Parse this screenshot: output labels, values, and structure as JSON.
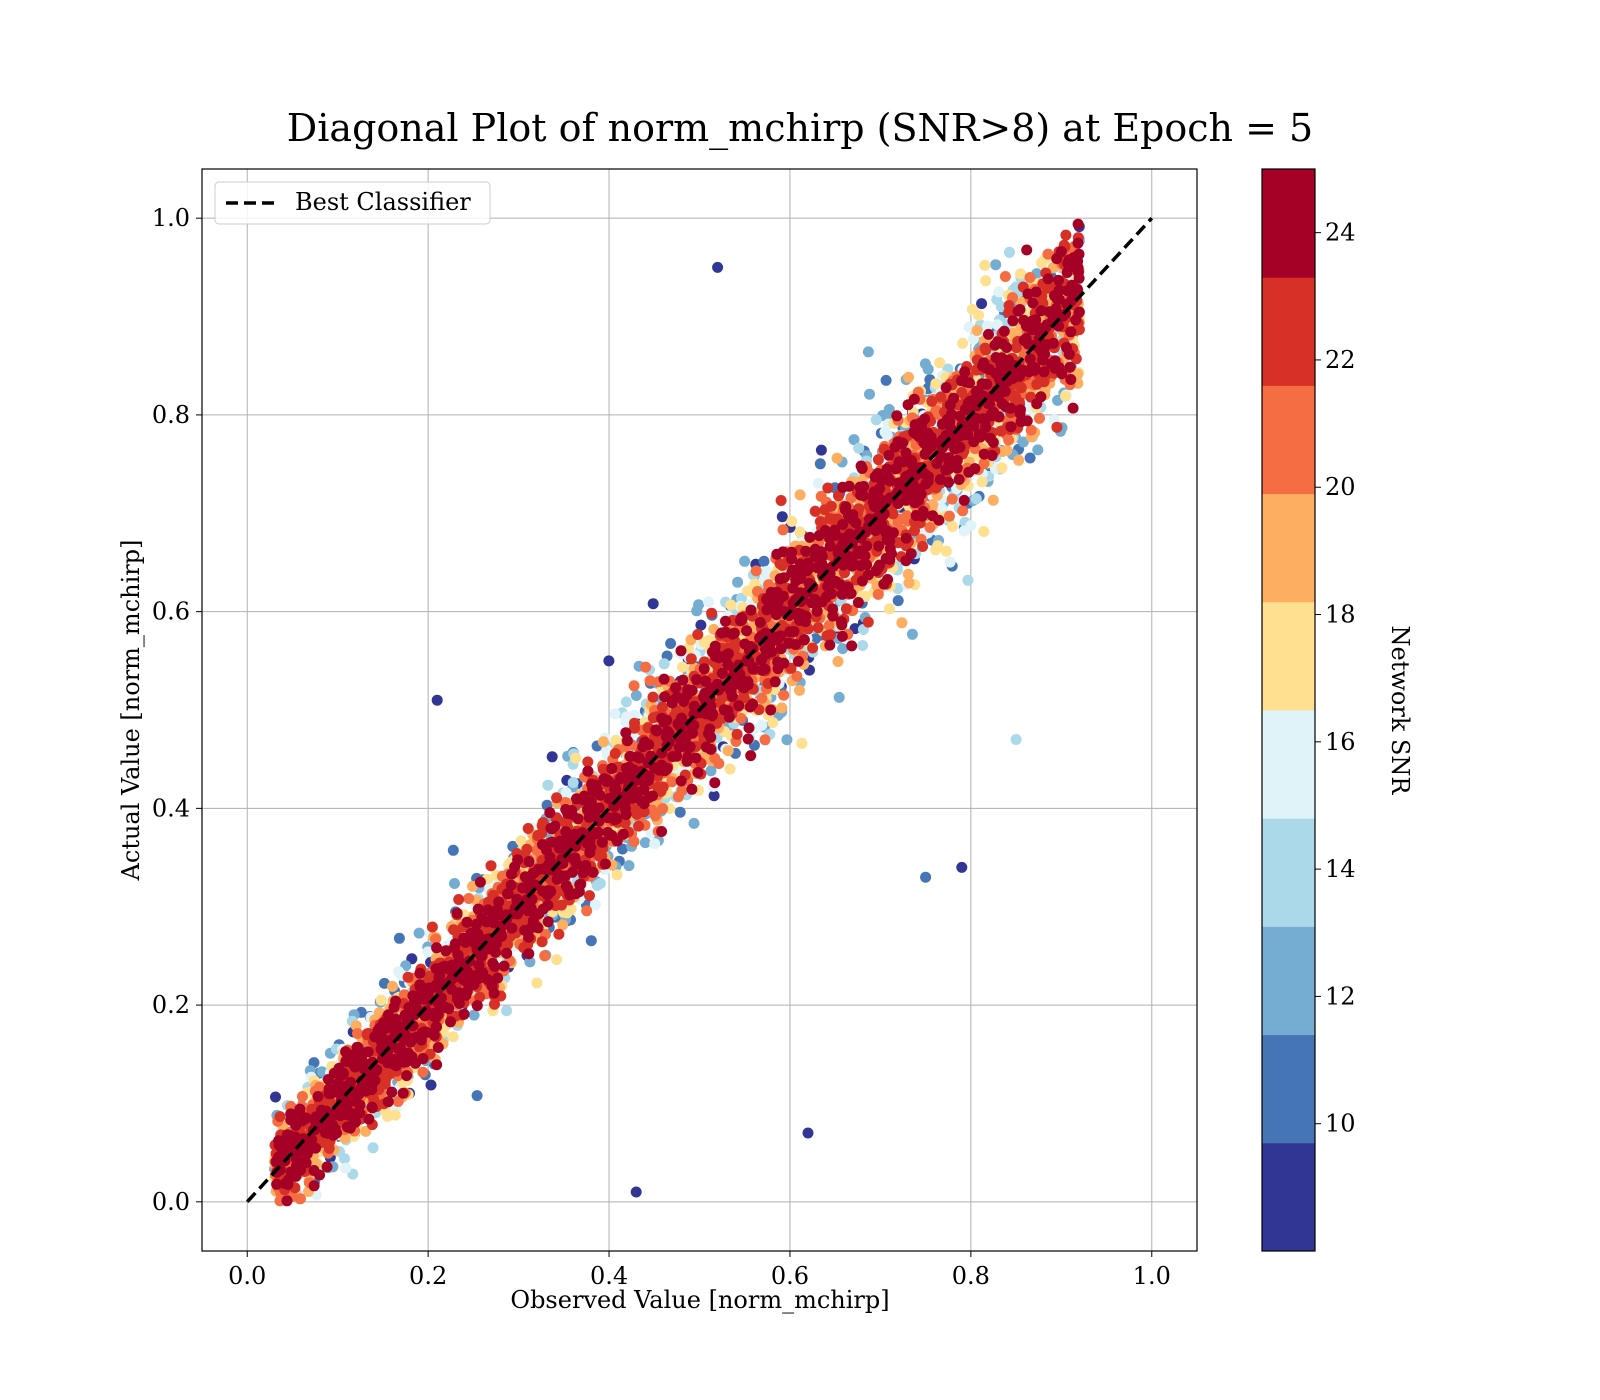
{
  "chart_data": {
    "type": "scatter",
    "title": "Diagonal Plot of norm_mchirp (SNR>8) at Epoch = 5",
    "xlabel": "Observed Value [norm_mchirp]",
    "ylabel": "Actual Value [norm_mchirp]",
    "xlim": [
      -0.05,
      1.05
    ],
    "ylim": [
      -0.05,
      1.05
    ],
    "xticks": [
      "0.0",
      "0.2",
      "0.4",
      "0.6",
      "0.8",
      "1.0"
    ],
    "yticks": [
      "0.0",
      "0.2",
      "0.4",
      "0.6",
      "0.8",
      "1.0"
    ],
    "grid": true,
    "legend": {
      "position": "upper-left",
      "entries": [
        "Best Classifier"
      ]
    },
    "reference_line": {
      "name": "Best Classifier",
      "x": [
        0.0,
        1.0
      ],
      "y": [
        0.0,
        1.0
      ],
      "style": "dashed",
      "color": "#000000"
    },
    "series": [
      {
        "color_by": "Network SNR",
        "approx_point_count": 7000,
        "description_points": [
          {
            "x": 0.05,
            "y": 0.03,
            "snr": 24
          },
          {
            "x": 0.1,
            "y": 0.12,
            "snr": 24
          },
          {
            "x": 0.2,
            "y": 0.21,
            "snr": 24
          },
          {
            "x": 0.3,
            "y": 0.3,
            "snr": 24
          },
          {
            "x": 0.4,
            "y": 0.41,
            "snr": 24
          },
          {
            "x": 0.5,
            "y": 0.5,
            "snr": 24
          },
          {
            "x": 0.6,
            "y": 0.6,
            "snr": 24
          },
          {
            "x": 0.7,
            "y": 0.7,
            "snr": 24
          },
          {
            "x": 0.8,
            "y": 0.79,
            "snr": 24
          },
          {
            "x": 0.9,
            "y": 0.9,
            "snr": 24
          },
          {
            "x": 0.21,
            "y": 0.51,
            "snr": 9
          },
          {
            "x": 0.52,
            "y": 0.95,
            "snr": 9
          },
          {
            "x": 0.62,
            "y": 0.07,
            "snr": 9
          },
          {
            "x": 0.75,
            "y": 0.33,
            "snr": 10
          },
          {
            "x": 0.79,
            "y": 0.34,
            "snr": 9
          },
          {
            "x": 0.85,
            "y": 0.47,
            "snr": 14
          },
          {
            "x": 0.43,
            "y": 0.01,
            "snr": 9
          }
        ]
      }
    ],
    "colorbar": {
      "label": "Network SNR",
      "range": [
        8,
        25
      ],
      "tick_values": [
        10,
        12,
        14,
        16,
        18,
        20,
        22,
        24
      ],
      "tick_labels": [
        "10",
        "12",
        "14",
        "16",
        "18",
        "20",
        "22",
        "24"
      ],
      "colors": [
        "#313695",
        "#4575b4",
        "#74add1",
        "#abd9e9",
        "#e0f3f8",
        "#fee090",
        "#fdae61",
        "#f46d43",
        "#d73027",
        "#a50026"
      ]
    }
  }
}
